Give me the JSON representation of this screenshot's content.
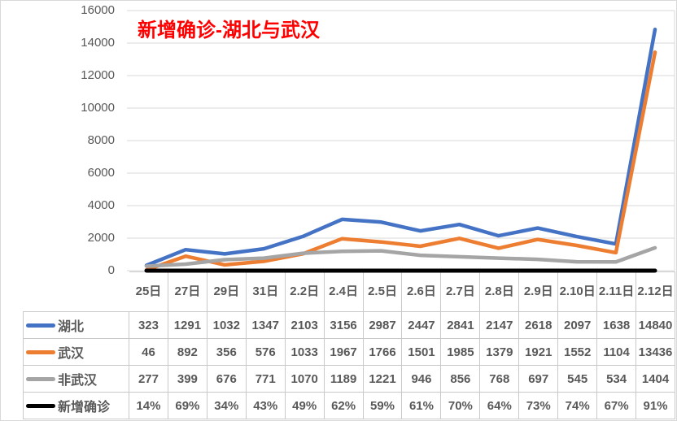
{
  "title": {
    "text": "新增确诊-湖北与武汉",
    "color": "#FF0000"
  },
  "chart_data": {
    "type": "line",
    "title": "新增确诊-湖北与武汉",
    "categories": [
      "25日",
      "27日",
      "29日",
      "31日",
      "2.2日",
      "2.4日",
      "2.5日",
      "2.6日",
      "2.7日",
      "2.8日",
      "2.9日",
      "2.10日",
      "2.11日",
      "2.12日"
    ],
    "series": [
      {
        "name": "湖北",
        "color": "#4472C4",
        "values": [
          323,
          1291,
          1032,
          1347,
          2103,
          3156,
          2987,
          2447,
          2841,
          2147,
          2618,
          2097,
          1638,
          14840
        ]
      },
      {
        "name": "武汉",
        "color": "#ED7D31",
        "values": [
          46,
          892,
          356,
          576,
          1033,
          1967,
          1766,
          1501,
          1985,
          1379,
          1921,
          1552,
          1104,
          13436
        ]
      },
      {
        "name": "非武汉",
        "color": "#A5A5A5",
        "values": [
          277,
          399,
          676,
          771,
          1070,
          1189,
          1221,
          946,
          856,
          768,
          697,
          545,
          534,
          1404
        ]
      },
      {
        "name": "新增确诊",
        "color": "#000000",
        "format": "percent",
        "values": [
          0.14,
          0.69,
          0.34,
          0.43,
          0.49,
          0.62,
          0.59,
          0.61,
          0.7,
          0.64,
          0.73,
          0.74,
          0.67,
          0.91
        ],
        "display": [
          "14%",
          "69%",
          "34%",
          "43%",
          "49%",
          "62%",
          "59%",
          "61%",
          "70%",
          "64%",
          "73%",
          "74%",
          "67%",
          "91%"
        ]
      }
    ],
    "ylim": [
      0,
      16000
    ],
    "ytick_step": 2000,
    "yticks": [
      0,
      2000,
      4000,
      6000,
      8000,
      10000,
      12000,
      14000,
      16000
    ],
    "grid": true,
    "gridline_color": "#d9d9d9",
    "axis_label_color": "#595959",
    "legend_position": "data-table-left"
  }
}
